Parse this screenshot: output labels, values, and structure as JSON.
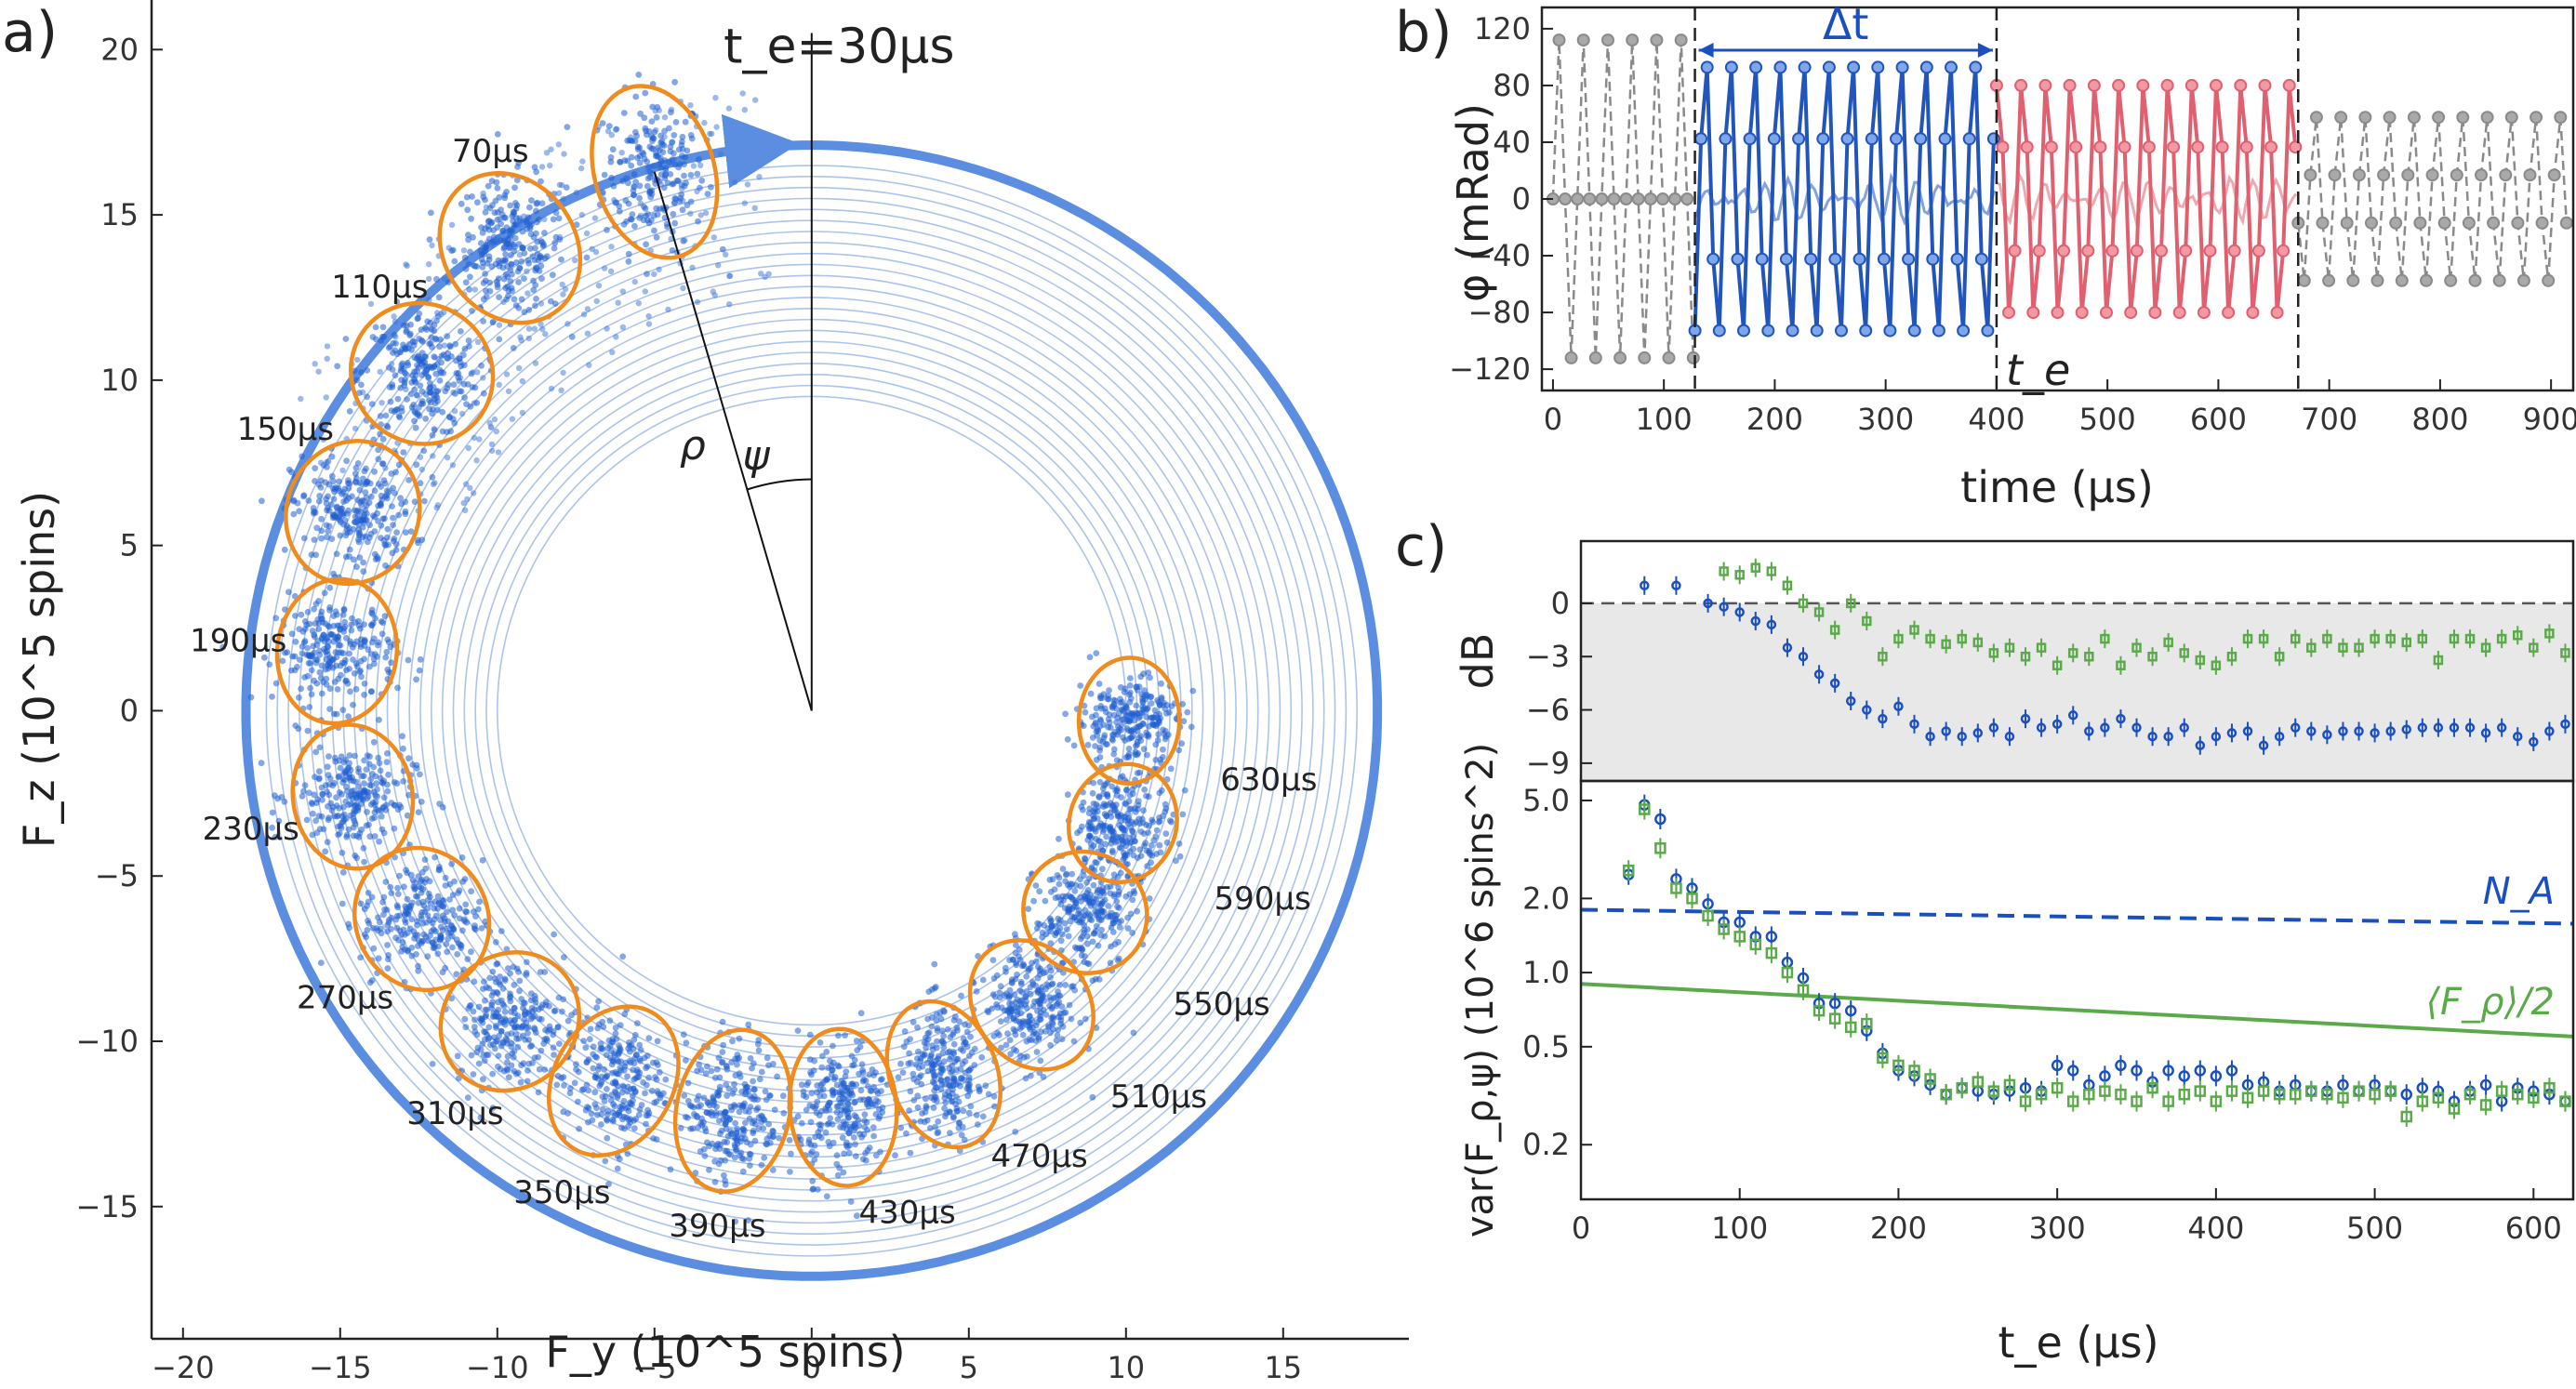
{
  "chart_data": [
    {
      "id": "a",
      "panel_label": "a)",
      "type": "scatter",
      "xlabel": "F_y (10^5 spins)",
      "ylabel": "F_z (10^5 spins)",
      "xlim": [
        -21,
        19
      ],
      "ylim": [
        -19,
        21.5
      ],
      "xticks": [
        -20,
        -15,
        -10,
        -5,
        0,
        5,
        10,
        15
      ],
      "yticks": [
        -15,
        -10,
        -5,
        0,
        5,
        10,
        15,
        20
      ],
      "xtick_labels": [
        "−20",
        "−15",
        "−10",
        "−5",
        "0",
        "5",
        "10",
        "15"
      ],
      "ytick_labels": [
        "−15",
        "−10",
        "−5",
        "0",
        "5",
        "10",
        "15",
        "20"
      ],
      "clusters": [
        {
          "label": "t_e=30μs",
          "t_us": 30,
          "fy": -5.0,
          "fz": 16.3,
          "rx": 1.9,
          "ry": 2.8
        },
        {
          "label": "70μs",
          "t_us": 70,
          "fy": -9.6,
          "fz": 14.0,
          "rx": 2.1,
          "ry": 2.5
        },
        {
          "label": "110μs",
          "t_us": 110,
          "fy": -12.4,
          "fz": 10.2,
          "rx": 2.2,
          "ry": 2.3
        },
        {
          "label": "150μs",
          "t_us": 150,
          "fy": -14.6,
          "fz": 6.0,
          "rx": 2.3,
          "ry": 2.1
        },
        {
          "label": "190μs",
          "t_us": 190,
          "fy": -15.1,
          "fz": 1.8,
          "rx": 2.3,
          "ry": 1.9
        },
        {
          "label": "230μs",
          "t_us": 230,
          "fy": -14.6,
          "fz": -2.6,
          "rx": 2.3,
          "ry": 1.9
        },
        {
          "label": "270μs",
          "t_us": 270,
          "fy": -12.4,
          "fz": -6.3,
          "rx": 2.3,
          "ry": 2.1
        },
        {
          "label": "310μs",
          "t_us": 310,
          "fy": -9.6,
          "fz": -9.4,
          "rx": 2.1,
          "ry": 2.3
        },
        {
          "label": "350μs",
          "t_us": 350,
          "fy": -6.3,
          "fz": -11.2,
          "rx": 1.9,
          "ry": 2.5
        },
        {
          "label": "390μs",
          "t_us": 390,
          "fy": -2.5,
          "fz": -12.1,
          "rx": 1.8,
          "ry": 2.6
        },
        {
          "label": "430μs",
          "t_us": 430,
          "fy": 1.0,
          "fz": -12.0,
          "rx": 1.7,
          "ry": 2.5
        },
        {
          "label": "470μs",
          "t_us": 470,
          "fy": 4.2,
          "fz": -11.0,
          "rx": 1.7,
          "ry": 2.4
        },
        {
          "label": "510μs",
          "t_us": 510,
          "fy": 7.0,
          "fz": -8.9,
          "rx": 1.8,
          "ry": 2.2
        },
        {
          "label": "550μs",
          "t_us": 550,
          "fy": 8.7,
          "fz": -6.1,
          "rx": 1.9,
          "ry": 2.0
        },
        {
          "label": "590μs",
          "t_us": 590,
          "fy": 9.9,
          "fz": -3.4,
          "rx": 1.9,
          "ry": 1.7
        },
        {
          "label": "630μs",
          "t_us": 630,
          "fy": 10.1,
          "fz": -0.3,
          "rx": 2.0,
          "ry": 1.6
        }
      ],
      "annotations": {
        "rho": "ρ",
        "psi": "ψ"
      }
    },
    {
      "id": "b",
      "panel_label": "b)",
      "type": "line",
      "xlabel": "time (μs)",
      "ylabel": "φ (mRad)",
      "xlim": [
        -10,
        920
      ],
      "ylim": [
        -135,
        135
      ],
      "xticks": [
        0,
        100,
        200,
        300,
        400,
        500,
        600,
        700,
        800,
        900
      ],
      "yticks": [
        -120,
        -80,
        -40,
        0,
        40,
        80,
        120
      ],
      "xtick_labels": [
        "0",
        "100",
        "200",
        "300",
        "400",
        "500",
        "600",
        "700",
        "800",
        "900"
      ],
      "ytick_labels": [
        "−120",
        "−80",
        "−40",
        "0",
        "40",
        "80",
        "120"
      ],
      "period_us": 22,
      "segments": [
        {
          "name": "before",
          "color": "#8a8a8a",
          "t_start": 0,
          "t_end": 128,
          "amplitude": 112
        },
        {
          "name": "probe",
          "color": "#2255bb",
          "t_start": 128,
          "t_end": 400,
          "amplitude": 102
        },
        {
          "name": "echo",
          "color": "#e06070",
          "t_start": 400,
          "t_end": 672,
          "amplitude": 88
        },
        {
          "name": "after",
          "color": "#8a8a8a",
          "t_start": 672,
          "t_end": 915,
          "amplitude": 60
        }
      ],
      "vlines": [
        128,
        400,
        672
      ],
      "delta_t_label": "Δt",
      "te_label": "t_e"
    },
    {
      "id": "c_top",
      "panel_label": "c)",
      "type": "scatter",
      "ylabel": "dB",
      "xlim": [
        0,
        625
      ],
      "ylim": [
        -10,
        3.5
      ],
      "yticks": [
        0,
        -3,
        -6,
        -9
      ],
      "ytick_labels": [
        "0",
        "−3",
        "−6",
        "−9"
      ],
      "shaded_below": 0,
      "series": [
        {
          "name": "blue",
          "color": "#1a4fc0",
          "x": [
            40,
            60,
            80,
            90,
            100,
            110,
            120,
            130,
            140,
            150,
            160,
            170,
            180,
            190,
            200,
            210,
            220,
            230,
            240,
            250,
            260,
            270,
            280,
            290,
            300,
            310,
            320,
            330,
            340,
            350,
            360,
            370,
            380,
            390,
            400,
            410,
            420,
            430,
            440,
            450,
            460,
            470,
            480,
            490,
            500,
            510,
            520,
            530,
            540,
            550,
            560,
            570,
            580,
            590,
            600,
            610,
            620
          ],
          "y": [
            1.0,
            1.0,
            0,
            -0.2,
            -0.5,
            -1.0,
            -1.2,
            -2.5,
            -3.0,
            -4.0,
            -4.5,
            -5.5,
            -6.0,
            -6.5,
            -5.8,
            -6.8,
            -7.5,
            -7.2,
            -7.5,
            -7.3,
            -7.0,
            -7.5,
            -6.5,
            -7.0,
            -6.8,
            -6.3,
            -7.2,
            -7.0,
            -6.5,
            -7.0,
            -7.5,
            -7.5,
            -7.0,
            -8.0,
            -7.5,
            -7.3,
            -7.2,
            -8.0,
            -7.5,
            -7.0,
            -7.2,
            -7.4,
            -7.2,
            -7.2,
            -7.3,
            -7.2,
            -7.1,
            -7.0,
            -7.0,
            -7.0,
            -7.0,
            -7.3,
            -7.0,
            -7.5,
            -7.8,
            -7.2,
            -6.8
          ]
        },
        {
          "name": "green",
          "color": "#5aaa4a",
          "x": [
            90,
            100,
            110,
            120,
            130,
            140,
            150,
            160,
            170,
            180,
            190,
            200,
            210,
            220,
            230,
            240,
            250,
            260,
            270,
            280,
            290,
            300,
            310,
            320,
            330,
            340,
            350,
            360,
            370,
            380,
            390,
            400,
            410,
            420,
            430,
            440,
            450,
            460,
            470,
            480,
            490,
            500,
            510,
            520,
            530,
            540,
            550,
            560,
            570,
            580,
            590,
            600,
            610,
            620
          ],
          "y": [
            1.8,
            1.6,
            2.0,
            1.8,
            1.0,
            0.0,
            -0.5,
            -1.5,
            0.0,
            -1.0,
            -3.0,
            -2.0,
            -1.5,
            -2.0,
            -2.3,
            -2.0,
            -2.2,
            -2.8,
            -2.5,
            -3.0,
            -2.5,
            -3.5,
            -2.8,
            -3.0,
            -2.0,
            -3.5,
            -2.5,
            -3.0,
            -2.2,
            -2.8,
            -3.2,
            -3.5,
            -3.0,
            -2.0,
            -2.0,
            -3.0,
            -2.0,
            -2.5,
            -2.0,
            -2.5,
            -2.5,
            -2.0,
            -2.0,
            -2.2,
            -2.0,
            -3.2,
            -2.0,
            -2.0,
            -2.5,
            -2.0,
            -1.8,
            -2.5,
            -1.7,
            -2.8
          ]
        }
      ]
    },
    {
      "id": "c_bottom",
      "type": "scatter",
      "xlabel": "t_e (μs)",
      "ylabel": "var(F_ρ,ψ) (10^6 spins^2)",
      "yscale": "log",
      "xlim": [
        0,
        625
      ],
      "ylim": [
        0.12,
        6.0
      ],
      "xticks": [
        0,
        100,
        200,
        300,
        400,
        500,
        600
      ],
      "xtick_labels": [
        "0",
        "100",
        "200",
        "300",
        "400",
        "500",
        "600"
      ],
      "yticks": [
        0.2,
        0.5,
        1.0,
        2.0,
        5.0
      ],
      "ytick_labels": [
        "0.2",
        "0.5",
        "1.0",
        "2.0",
        "5.0"
      ],
      "reference_lines": [
        {
          "name": "N_A",
          "style": "dashed",
          "color": "#1a4fc0",
          "x": [
            0,
            625
          ],
          "y": [
            1.8,
            1.58
          ],
          "label": "N_A"
        },
        {
          "name": "<F_rho>/2",
          "style": "solid",
          "color": "#5aaa4a",
          "x": [
            0,
            625
          ],
          "y": [
            0.9,
            0.55
          ],
          "label": "⟨F_ρ⟩/2"
        }
      ],
      "series": [
        {
          "name": "blue",
          "color": "#1a4fc0",
          "x": [
            30,
            40,
            50,
            60,
            70,
            80,
            90,
            100,
            110,
            120,
            130,
            140,
            150,
            160,
            170,
            180,
            190,
            200,
            210,
            220,
            230,
            240,
            250,
            260,
            270,
            280,
            290,
            300,
            310,
            320,
            330,
            340,
            350,
            360,
            370,
            380,
            390,
            400,
            410,
            420,
            430,
            440,
            450,
            460,
            470,
            480,
            490,
            500,
            510,
            520,
            530,
            540,
            550,
            560,
            570,
            580,
            590,
            600,
            610,
            620
          ],
          "y": [
            2.5,
            4.8,
            4.2,
            2.4,
            2.2,
            1.9,
            1.6,
            1.6,
            1.4,
            1.4,
            1.1,
            0.95,
            0.75,
            0.75,
            0.7,
            0.58,
            0.47,
            0.4,
            0.38,
            0.35,
            0.32,
            0.34,
            0.33,
            0.32,
            0.33,
            0.34,
            0.33,
            0.42,
            0.4,
            0.35,
            0.38,
            0.42,
            0.4,
            0.36,
            0.4,
            0.38,
            0.4,
            0.38,
            0.4,
            0.35,
            0.36,
            0.33,
            0.35,
            0.33,
            0.33,
            0.35,
            0.33,
            0.35,
            0.33,
            0.32,
            0.34,
            0.33,
            0.3,
            0.33,
            0.35,
            0.3,
            0.34,
            0.33,
            0.32,
            0.3
          ]
        },
        {
          "name": "green",
          "color": "#5aaa4a",
          "x": [
            30,
            40,
            50,
            60,
            70,
            80,
            90,
            100,
            110,
            120,
            130,
            140,
            150,
            160,
            170,
            180,
            190,
            200,
            210,
            220,
            230,
            240,
            250,
            260,
            270,
            280,
            290,
            300,
            310,
            320,
            330,
            340,
            350,
            360,
            370,
            380,
            390,
            400,
            410,
            420,
            430,
            440,
            450,
            460,
            470,
            480,
            490,
            500,
            510,
            520,
            530,
            540,
            550,
            560,
            570,
            580,
            590,
            600,
            610,
            620
          ],
          "y": [
            2.6,
            4.6,
            3.2,
            2.2,
            2.0,
            1.7,
            1.5,
            1.4,
            1.3,
            1.2,
            1.0,
            0.85,
            0.7,
            0.65,
            0.6,
            0.62,
            0.45,
            0.42,
            0.4,
            0.37,
            0.32,
            0.34,
            0.36,
            0.33,
            0.35,
            0.3,
            0.32,
            0.34,
            0.3,
            0.32,
            0.33,
            0.32,
            0.3,
            0.34,
            0.3,
            0.32,
            0.33,
            0.3,
            0.33,
            0.31,
            0.33,
            0.32,
            0.32,
            0.33,
            0.32,
            0.31,
            0.33,
            0.32,
            0.33,
            0.26,
            0.3,
            0.31,
            0.28,
            0.32,
            0.29,
            0.33,
            0.32,
            0.31,
            0.34,
            0.3
          ]
        }
      ]
    }
  ]
}
